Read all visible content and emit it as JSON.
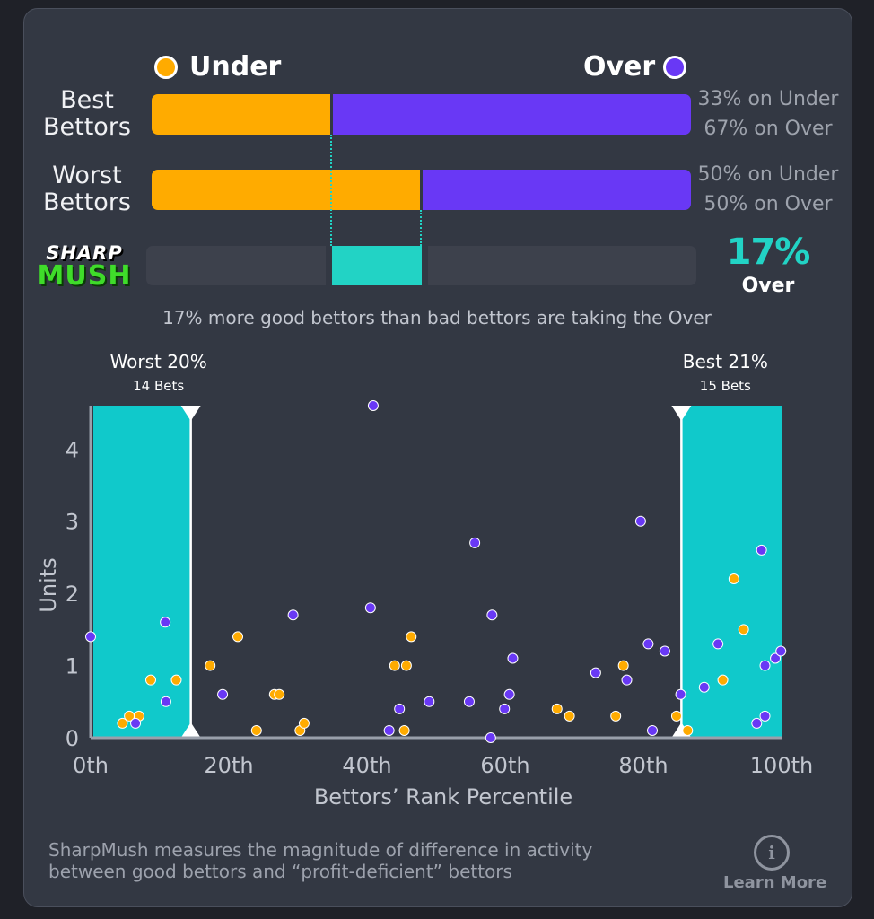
{
  "legend": {
    "under_label": "Under",
    "over_label": "Over"
  },
  "colors": {
    "under": "#ffab00",
    "over": "#6938f5",
    "mush": "#22d3c5",
    "band": "#10c9cb"
  },
  "best": {
    "label": "Best\nBettors",
    "under_text": "33% on Under",
    "over_text": "67% on Over",
    "under_pct": 33
  },
  "worst": {
    "label": "Worst\nBettors",
    "under_text": "50% on Under",
    "over_text": "50% on Over",
    "under_pct": 50
  },
  "sharpmush": {
    "logo_top": "SHARP",
    "logo_bottom": "MUSH",
    "value": "17%",
    "side": "Over",
    "caption": "17% more good bettors than bad bettors are taking the Over"
  },
  "chart_data": {
    "type": "scatter",
    "xlabel": "Bettors’ Rank Percentile",
    "ylabel": "Units",
    "xlim": [
      0,
      100
    ],
    "ylim": [
      0,
      4.6
    ],
    "x_ticks": [
      0,
      20,
      40,
      60,
      80,
      100
    ],
    "x_tick_labels": [
      "0th",
      "20th",
      "40th",
      "60th",
      "80th",
      "100th"
    ],
    "y_ticks": [
      0,
      1,
      2,
      3,
      4
    ],
    "y_tick_labels": [
      "0",
      "1",
      "2",
      "3",
      "4"
    ],
    "worst_band": {
      "x_end": 14.5,
      "label": "Worst 20%",
      "sublabel": "14 Bets"
    },
    "best_band": {
      "x_start": 85.5,
      "label": "Best 21%",
      "sublabel": "15 Bets"
    },
    "series": [
      {
        "name": "Under",
        "color": "#ffab00",
        "points": [
          [
            4.6,
            0.2
          ],
          [
            5.6,
            0.3
          ],
          [
            7.0,
            0.3
          ],
          [
            8.7,
            0.8
          ],
          [
            12.4,
            0.8
          ],
          [
            17.3,
            1.0
          ],
          [
            21.3,
            1.4
          ],
          [
            24.0,
            0.1
          ],
          [
            26.6,
            0.6
          ],
          [
            27.3,
            0.6
          ],
          [
            30.3,
            0.1
          ],
          [
            30.9,
            0.2
          ],
          [
            44.0,
            1.0
          ],
          [
            45.4,
            0.1
          ],
          [
            45.7,
            1.0
          ],
          [
            46.4,
            1.4
          ],
          [
            67.5,
            0.4
          ],
          [
            69.3,
            0.3
          ],
          [
            76.0,
            0.3
          ],
          [
            77.1,
            1.0
          ],
          [
            84.8,
            0.3
          ],
          [
            86.4,
            0.1
          ],
          [
            91.5,
            0.8
          ],
          [
            93.1,
            2.2
          ],
          [
            94.5,
            1.5
          ]
        ]
      },
      {
        "name": "Over",
        "color": "#6938f5",
        "points": [
          [
            0.0,
            1.4
          ],
          [
            6.5,
            0.2
          ],
          [
            10.8,
            1.6
          ],
          [
            10.9,
            0.5
          ],
          [
            19.1,
            0.6
          ],
          [
            29.3,
            1.7
          ],
          [
            40.5,
            1.8
          ],
          [
            40.9,
            4.6
          ],
          [
            43.2,
            0.1
          ],
          [
            44.7,
            0.4
          ],
          [
            49.0,
            0.5
          ],
          [
            54.8,
            0.5
          ],
          [
            55.6,
            2.7
          ],
          [
            57.9,
            0.0
          ],
          [
            58.1,
            1.7
          ],
          [
            59.9,
            0.4
          ],
          [
            60.6,
            0.6
          ],
          [
            61.1,
            1.1
          ],
          [
            73.1,
            0.9
          ],
          [
            77.6,
            0.8
          ],
          [
            79.6,
            3.0
          ],
          [
            80.7,
            1.3
          ],
          [
            81.3,
            0.1
          ],
          [
            83.1,
            1.2
          ],
          [
            85.4,
            0.6
          ],
          [
            88.8,
            0.7
          ],
          [
            90.8,
            1.3
          ],
          [
            96.4,
            0.2
          ],
          [
            97.1,
            2.6
          ],
          [
            97.6,
            1.0
          ],
          [
            97.6,
            0.3
          ],
          [
            99.1,
            1.1
          ],
          [
            99.9,
            1.2
          ]
        ]
      }
    ]
  },
  "footer": {
    "line1": "SharpMush measures the magnitude of difference in activity",
    "line2": "between good bettors and “profit-deficient” bettors",
    "info_glyph": "i",
    "learn_more": "Learn More"
  }
}
